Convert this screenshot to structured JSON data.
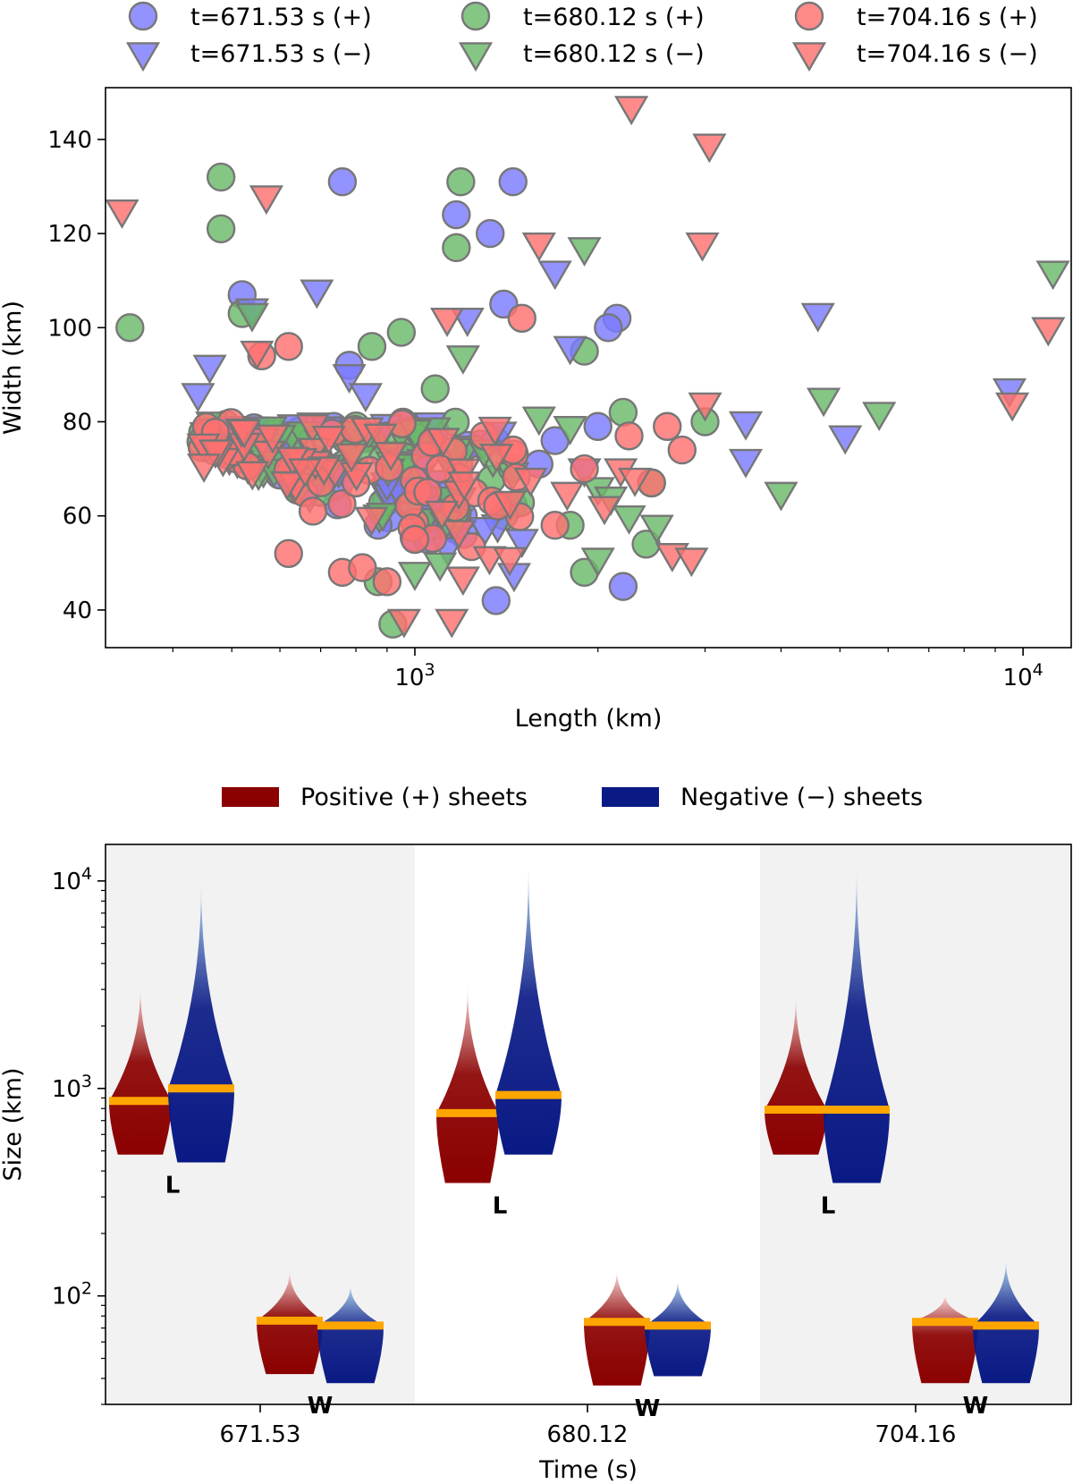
{
  "chart_data": [
    {
      "type": "scatter",
      "xlabel": "Length (km)",
      "ylabel": "Width (km)",
      "xscale": "log",
      "xlim": [
        310,
        12000
      ],
      "ylim": [
        32,
        151
      ],
      "xticks": [
        {
          "value": 1000,
          "base": "10",
          "exp": "3"
        },
        {
          "value": 10000,
          "base": "10",
          "exp": "4"
        }
      ],
      "yticks": [
        40,
        60,
        80,
        100,
        120,
        140
      ],
      "legend_position": "top",
      "series": [
        {
          "name": "t=671.53 s (+)",
          "marker": "circle",
          "color": "#7b7bff",
          "points": [
            [
              760,
              131
            ],
            [
              1170,
              124
            ],
            [
              1330,
              120
            ],
            [
              1450,
              131
            ],
            [
              520,
              107
            ],
            [
              1400,
              105
            ],
            [
              2150,
              102
            ],
            [
              2080,
              100
            ],
            [
              780,
              92
            ],
            [
              1080,
              78
            ],
            [
              2000,
              79
            ],
            [
              900,
              68
            ],
            [
              1120,
              62
            ],
            [
              1050,
              55
            ],
            [
              1360,
              42
            ],
            [
              2200,
              45
            ],
            [
              870,
              58
            ],
            [
              640,
              66
            ],
            [
              1220,
              75
            ],
            [
              1600,
              71
            ],
            [
              1700,
              76
            ]
          ]
        },
        {
          "name": "t=671.53 s (−)",
          "marker": "triangle-down",
          "color": "#7b7bff",
          "points": [
            [
              690,
              108
            ],
            [
              460,
              92
            ],
            [
              440,
              86
            ],
            [
              540,
              104
            ],
            [
              780,
              90
            ],
            [
              830,
              86
            ],
            [
              1220,
              102
            ],
            [
              1700,
              112
            ],
            [
              1800,
              96
            ],
            [
              3500,
              80
            ],
            [
              4600,
              103
            ],
            [
              5100,
              77
            ],
            [
              9500,
              87
            ],
            [
              3500,
              72
            ],
            [
              900,
              67
            ],
            [
              1500,
              55
            ],
            [
              1100,
              62
            ],
            [
              600,
              74
            ],
            [
              1900,
              70
            ]
          ]
        },
        {
          "name": "t=680.12 s (+)",
          "marker": "circle",
          "color": "#6aba6a",
          "points": [
            [
              340,
              100
            ],
            [
              480,
              132
            ],
            [
              480,
              121
            ],
            [
              1190,
              131
            ],
            [
              1170,
              117
            ],
            [
              520,
              103
            ],
            [
              850,
              96
            ],
            [
              950,
              99
            ],
            [
              1080,
              87
            ],
            [
              1900,
              95
            ],
            [
              2200,
              82
            ],
            [
              3000,
              80
            ],
            [
              2450,
              67
            ],
            [
              2400,
              54
            ],
            [
              1800,
              58
            ],
            [
              1900,
              48
            ],
            [
              870,
              46
            ],
            [
              920,
              37
            ],
            [
              1000,
              70
            ],
            [
              600,
              72
            ],
            [
              700,
              65
            ],
            [
              1400,
              60
            ]
          ]
        },
        {
          "name": "t=680.12 s (−)",
          "marker": "triangle-down",
          "color": "#6aba6a",
          "points": [
            [
              540,
              103
            ],
            [
              1200,
              94
            ],
            [
              1600,
              81
            ],
            [
              1800,
              79
            ],
            [
              1900,
              117
            ],
            [
              2000,
              66
            ],
            [
              2100,
              64
            ],
            [
              2250,
              60
            ],
            [
              2500,
              58
            ],
            [
              2000,
              51
            ],
            [
              4000,
              65
            ],
            [
              4700,
              85
            ],
            [
              5800,
              82
            ],
            [
              11200,
              112
            ],
            [
              1000,
              48
            ],
            [
              1100,
              50
            ],
            [
              700,
              76
            ],
            [
              800,
              78
            ],
            [
              1300,
              74
            ]
          ]
        },
        {
          "name": "t=704.16 s (+)",
          "marker": "circle",
          "color": "#ff7070",
          "points": [
            [
              560,
              94
            ],
            [
              620,
              96
            ],
            [
              1500,
              102
            ],
            [
              2250,
              77
            ],
            [
              2600,
              79
            ],
            [
              2750,
              74
            ],
            [
              2450,
              67
            ],
            [
              1900,
              70
            ],
            [
              1300,
              77
            ],
            [
              1050,
              65
            ],
            [
              1000,
              55
            ],
            [
              900,
              46
            ],
            [
              760,
              48
            ],
            [
              820,
              49
            ],
            [
              620,
              52
            ],
            [
              1100,
              70
            ],
            [
              1450,
              74
            ],
            [
              800,
              67
            ],
            [
              680,
              61
            ],
            [
              1700,
              58
            ]
          ]
        },
        {
          "name": "t=704.16 s (−)",
          "marker": "triangle-down",
          "color": "#ff7070",
          "points": [
            [
              330,
              125
            ],
            [
              570,
              128
            ],
            [
              2270,
              147
            ],
            [
              3050,
              139
            ],
            [
              2970,
              118
            ],
            [
              1600,
              118
            ],
            [
              1130,
              102
            ],
            [
              550,
              95
            ],
            [
              3000,
              84
            ],
            [
              2180,
              70
            ],
            [
              2300,
              68
            ],
            [
              2650,
              52
            ],
            [
              2850,
              51
            ],
            [
              9600,
              84
            ],
            [
              11000,
              100
            ],
            [
              1200,
              47
            ],
            [
              1150,
              38
            ],
            [
              960,
              38
            ],
            [
              1780,
              65
            ],
            [
              2050,
              62
            ],
            [
              1550,
              68
            ],
            [
              660,
              70
            ],
            [
              470,
              74
            ],
            [
              450,
              71
            ]
          ]
        }
      ]
    },
    {
      "type": "violin",
      "xlabel": "Time (s)",
      "ylabel": "Size (km)",
      "yscale": "log",
      "ylim": [
        30,
        15000
      ],
      "yticks": [
        {
          "value": 100,
          "base": "10",
          "exp": "2"
        },
        {
          "value": 1000,
          "base": "10",
          "exp": "3"
        },
        {
          "value": 10000,
          "base": "10",
          "exp": "4"
        }
      ],
      "categories": [
        "671.53",
        "680.12",
        "704.16"
      ],
      "legend_position": "top",
      "legend": [
        {
          "label": "Positive (+) sheets",
          "color": "#8b0000"
        },
        {
          "label": "Negative (−) sheets",
          "color": "#0a1a85"
        }
      ],
      "median_color": "#ffa500",
      "group_labels": {
        "length": "L",
        "width": "W"
      },
      "groups": [
        {
          "time": "671.53",
          "length": {
            "positive": {
              "min": 480,
              "max": 3100,
              "median": 870
            },
            "negative": {
              "min": 440,
              "max": 9800,
              "median": 1000
            }
          },
          "width": {
            "positive": {
              "min": 42,
              "max": 132,
              "median": 76
            },
            "negative": {
              "min": 38,
              "max": 112,
              "median": 72
            }
          }
        },
        {
          "time": "680.12",
          "length": {
            "positive": {
              "min": 350,
              "max": 3100,
              "median": 760
            },
            "negative": {
              "min": 480,
              "max": 11500,
              "median": 930
            }
          },
          "width": {
            "positive": {
              "min": 37,
              "max": 132,
              "median": 75
            },
            "negative": {
              "min": 41,
              "max": 118,
              "median": 72
            }
          }
        },
        {
          "time": "704.16",
          "length": {
            "positive": {
              "min": 480,
              "max": 2800,
              "median": 790
            },
            "negative": {
              "min": 350,
              "max": 11500,
              "median": 790
            }
          },
          "width": {
            "positive": {
              "min": 38,
              "max": 101,
              "median": 75
            },
            "negative": {
              "min": 38,
              "max": 147,
              "median": 72
            }
          }
        }
      ]
    }
  ]
}
